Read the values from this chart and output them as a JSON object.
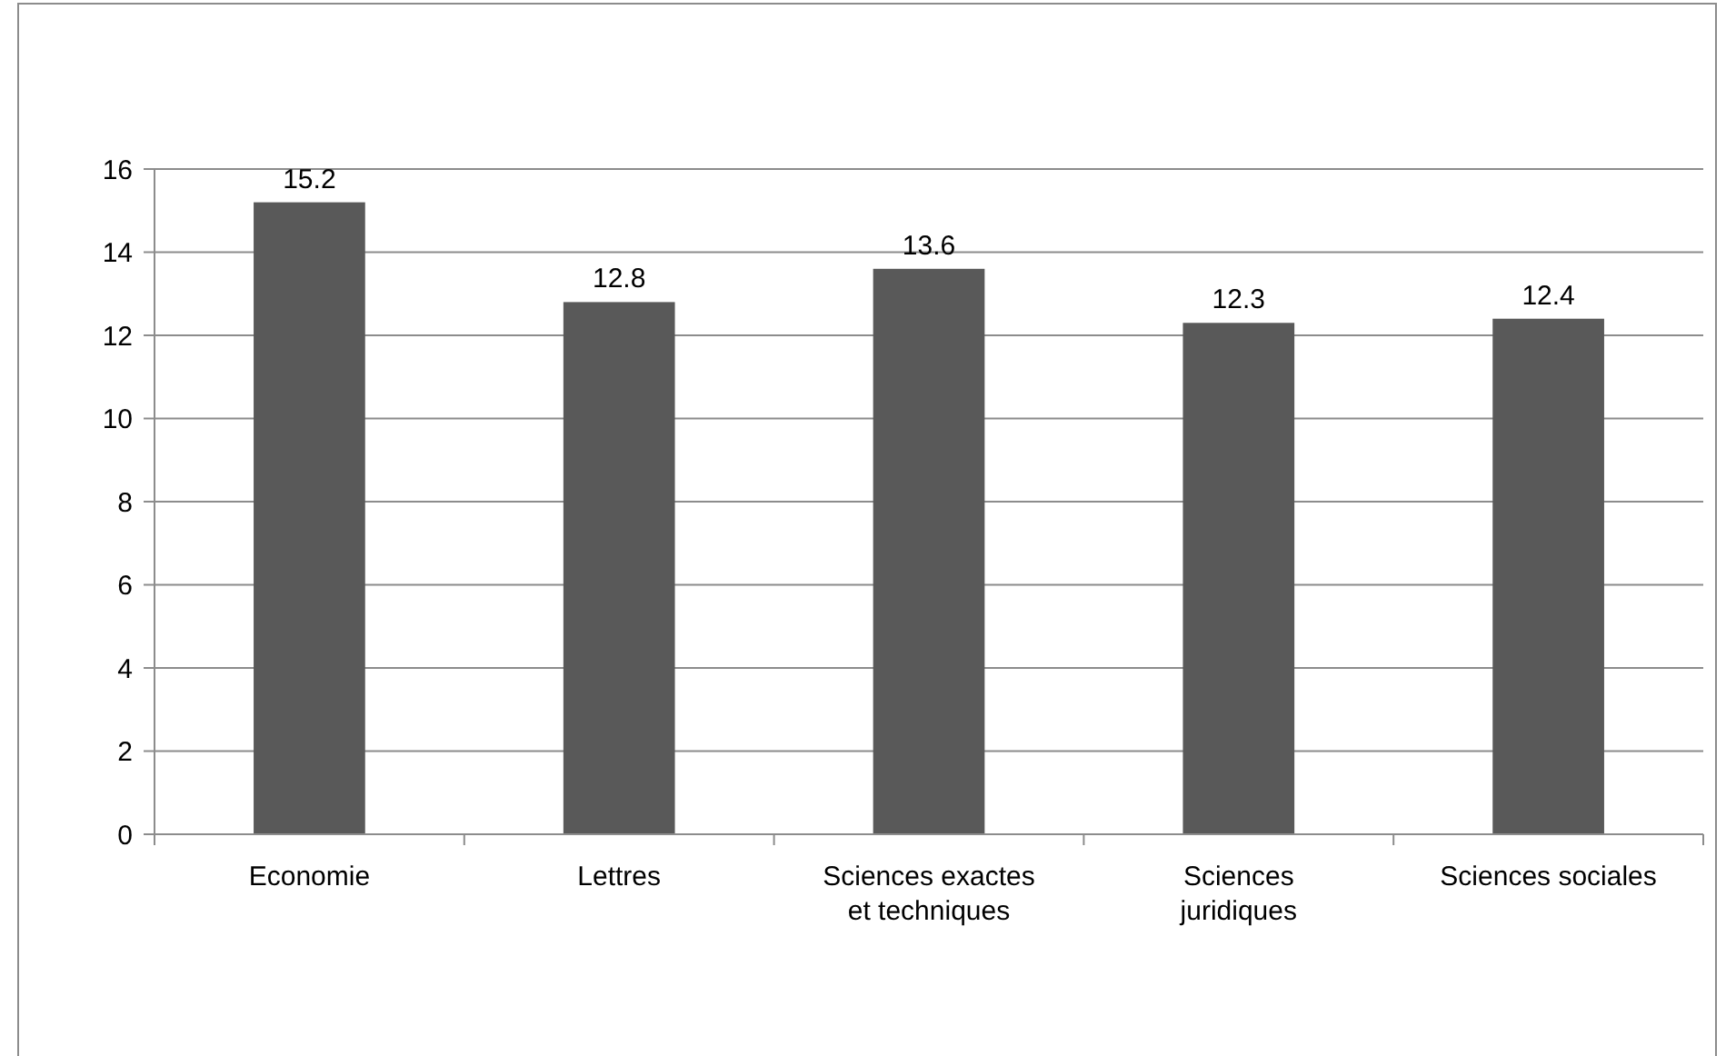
{
  "chart_data": {
    "type": "bar",
    "categories": [
      "Economie",
      "Lettres",
      "Sciences exactes\net techniques",
      "Sciences\njuridiques",
      "Sciences sociales"
    ],
    "values": [
      15.2,
      12.8,
      13.6,
      12.3,
      12.4
    ],
    "color": "#595959",
    "ylim": [
      0,
      16
    ],
    "yticks": [
      0,
      2,
      4,
      6,
      8,
      10,
      12,
      14,
      16
    ],
    "grid": "y",
    "data_labels": true
  }
}
